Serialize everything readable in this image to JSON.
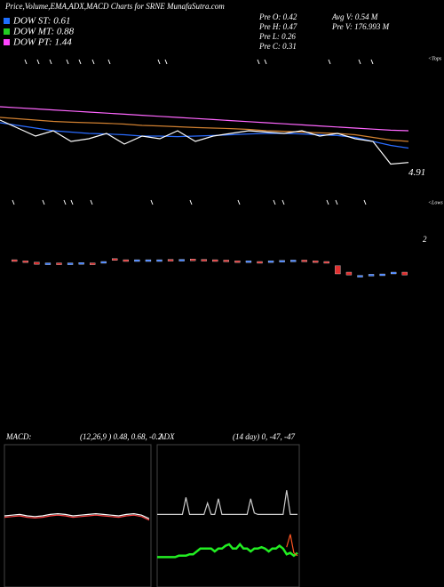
{
  "title": "Price,Volume,EMA,ADX,MACD Charts for SRNE MunafaSutra.com",
  "legend": [
    {
      "label": "DOW ST: 0.61",
      "color": "#1e6fff"
    },
    {
      "label": "DOW MT: 0.88",
      "color": "#22cc22"
    },
    {
      "label": "DOW PT: 1.44",
      "color": "#ff44ff"
    }
  ],
  "info": [
    "Pre O: 0.42",
    "Pre H: 0.47",
    "Pre L: 0.26",
    "Pre C: 0.31"
  ],
  "volume_info": [
    "Avg V: 0.54 M",
    "Pre V: 176.993 M"
  ],
  "top_marker": "<Tops",
  "low_marker": "<Lows",
  "chart_data": [
    {
      "type": "line",
      "last_label": "4.91",
      "ylim": [
        3,
        9
      ],
      "series": [
        {
          "color": "#ff66ff",
          "values": [
            7.0,
            6.96,
            6.92,
            6.88,
            6.84,
            6.8,
            6.76,
            6.72,
            6.68,
            6.64,
            6.6,
            6.56,
            6.52,
            6.48,
            6.44,
            6.4,
            6.36,
            6.32,
            6.28,
            6.24,
            6.2,
            6.16,
            6.12,
            6.1
          ]
        },
        {
          "color": "#d08030",
          "values": [
            6.6,
            6.55,
            6.5,
            6.45,
            6.42,
            6.4,
            6.38,
            6.35,
            6.3,
            6.28,
            6.25,
            6.22,
            6.2,
            6.18,
            6.15,
            6.1,
            6.08,
            6.05,
            6.02,
            6.0,
            5.95,
            5.85,
            5.75,
            5.7
          ]
        },
        {
          "color": "#2a6cff",
          "values": [
            6.4,
            6.3,
            6.2,
            6.1,
            6.05,
            6.0,
            5.98,
            5.95,
            5.9,
            5.9,
            5.88,
            5.9,
            5.92,
            5.95,
            5.98,
            6.0,
            6.0,
            5.98,
            5.95,
            5.92,
            5.85,
            5.7,
            5.55,
            5.45
          ]
        },
        {
          "color": "#ffffff",
          "values": [
            6.5,
            6.2,
            5.9,
            6.1,
            5.7,
            5.8,
            6.0,
            5.6,
            5.9,
            5.8,
            6.1,
            5.7,
            5.9,
            6.0,
            6.1,
            6.05,
            6.0,
            6.1,
            5.9,
            6.0,
            5.8,
            5.7,
            4.85,
            4.91
          ]
        }
      ]
    },
    {
      "type": "candlestick",
      "ylim": [
        0.5,
        2.25
      ],
      "yticks": [
        2
      ],
      "up_color": "#3a7bff",
      "down_color": "#e03030",
      "open": [
        1.45,
        1.42,
        1.38,
        1.35,
        1.36,
        1.35,
        1.33,
        1.36,
        1.38,
        1.48,
        1.45,
        1.44,
        1.43,
        1.44,
        1.46,
        1.45,
        1.47,
        1.46,
        1.45,
        1.44,
        1.42,
        1.41,
        1.4,
        1.41,
        1.42,
        1.43,
        1.44,
        1.42,
        1.4,
        1.28,
        1.1,
        1.0,
        1.02,
        1.03,
        1.05,
        1.1
      ],
      "close": [
        1.44,
        1.4,
        1.32,
        1.36,
        1.34,
        1.36,
        1.37,
        1.35,
        1.4,
        1.44,
        1.44,
        1.45,
        1.45,
        1.45,
        1.44,
        1.46,
        1.45,
        1.45,
        1.43,
        1.42,
        1.41,
        1.42,
        1.39,
        1.42,
        1.43,
        1.44,
        1.42,
        1.41,
        1.38,
        1.05,
        1.02,
        1.01,
        1.04,
        1.05,
        1.1,
        1.02
      ]
    },
    {
      "type": "line",
      "title": "MACD:",
      "subtitle": "(12,26,9 ) 0.48, 0.68, -0.2",
      "ylim": [
        -1,
        1
      ],
      "background": "#0b2a0b",
      "series": [
        {
          "color": "#ffffff",
          "values": [
            0.0,
            0.01,
            0.02,
            0.0,
            -0.01,
            0.0,
            0.02,
            0.03,
            0.02,
            0.0,
            0.01,
            0.02,
            0.03,
            0.02,
            0.01,
            0.0,
            0.02,
            0.03,
            0.01,
            -0.04
          ]
        },
        {
          "color": "#ff4444",
          "values": [
            -0.02,
            -0.01,
            0.0,
            -0.02,
            -0.03,
            -0.02,
            0.0,
            0.01,
            0.0,
            -0.02,
            -0.01,
            0.0,
            0.01,
            0.0,
            -0.01,
            -0.02,
            0.0,
            0.01,
            -0.01,
            -0.06
          ]
        }
      ]
    },
    {
      "type": "line",
      "title": "ADX",
      "subtitle": "(14 day) 0, -47, -47",
      "ylim": [
        0,
        100
      ],
      "background": "#000000",
      "series": [
        {
          "color": "#cccccc",
          "values": [
            51,
            51,
            51,
            51,
            51,
            51,
            51,
            51,
            63,
            51,
            51,
            51,
            51,
            51,
            59,
            51,
            51,
            62,
            51,
            51,
            51,
            51,
            51,
            51,
            51,
            51,
            62,
            52,
            51,
            51,
            51,
            51,
            51,
            51,
            51,
            51,
            68,
            51,
            51,
            51
          ]
        },
        {
          "color": "#22ee22",
          "values": [
            21,
            21,
            21,
            21,
            21,
            21,
            22,
            22,
            22,
            23,
            23,
            25,
            27,
            27,
            27,
            27,
            25,
            27,
            27,
            29,
            30,
            27,
            27,
            30,
            27,
            27,
            25,
            27,
            27,
            28,
            27,
            25,
            27,
            27,
            29,
            27,
            23,
            24,
            22,
            24
          ]
        },
        {
          "color": "#ff5522",
          "values": [
            null,
            null,
            null,
            null,
            null,
            null,
            null,
            null,
            null,
            null,
            null,
            null,
            null,
            null,
            null,
            null,
            null,
            null,
            null,
            null,
            null,
            null,
            null,
            null,
            null,
            null,
            null,
            null,
            null,
            null,
            null,
            null,
            null,
            null,
            null,
            null,
            28,
            37,
            24,
            22
          ]
        }
      ]
    }
  ]
}
